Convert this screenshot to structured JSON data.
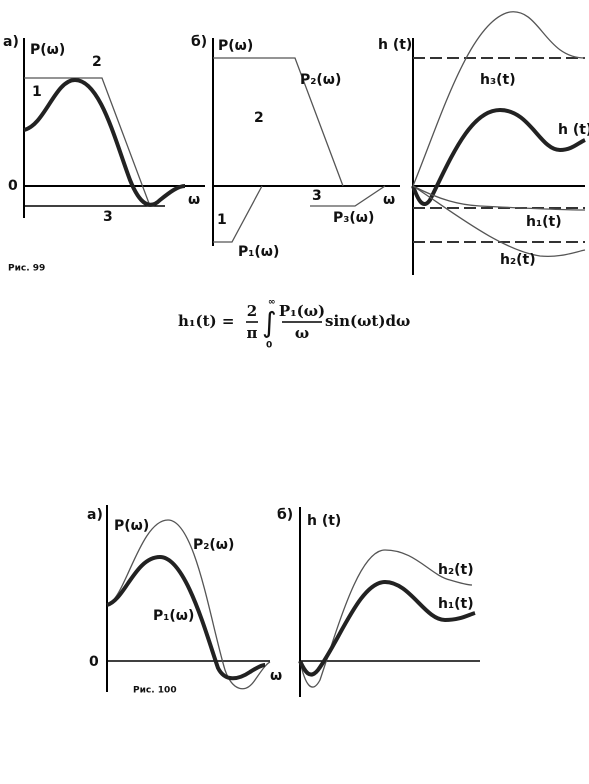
{
  "fig99": {
    "a": {
      "panel": "а)",
      "ylabel": "P(ω)",
      "curve2": "2",
      "curve1": "1",
      "zero": "0",
      "curve3": "3",
      "xlabel": "ω",
      "caption": "Рис. 99"
    },
    "b": {
      "panel": "б)",
      "ylabel": "P(ω)",
      "p2": "P₂(ω)",
      "region2": "2",
      "region3": "3",
      "region1": "1",
      "p1": "P₁(ω)",
      "p3": "P₃(ω)",
      "xlabel": "ω"
    },
    "c": {
      "ylabel": "h (t)",
      "h3": "h₃(t)",
      "h": "h (t)",
      "h1": "h₁(t)",
      "h2": "h₂(t)"
    }
  },
  "formula": {
    "lhs": "h₁(t) =",
    "num": "2",
    "den": "π",
    "upper": "∞",
    "lower": "0",
    "fnum": "P₁(ω)",
    "fden": "ω",
    "rest": "sin(ωt)dω"
  },
  "fig100": {
    "a": {
      "panel": "а)",
      "ylabel": "P(ω)",
      "p2": "P₂(ω)",
      "p1": "P₁(ω)",
      "zero": "0",
      "xlabel": "ω",
      "caption": "Рис. 100"
    },
    "b": {
      "panel": "б)",
      "ylabel": "h (t)",
      "h2": "h₂(t)",
      "h1": "h₁(t)"
    }
  }
}
